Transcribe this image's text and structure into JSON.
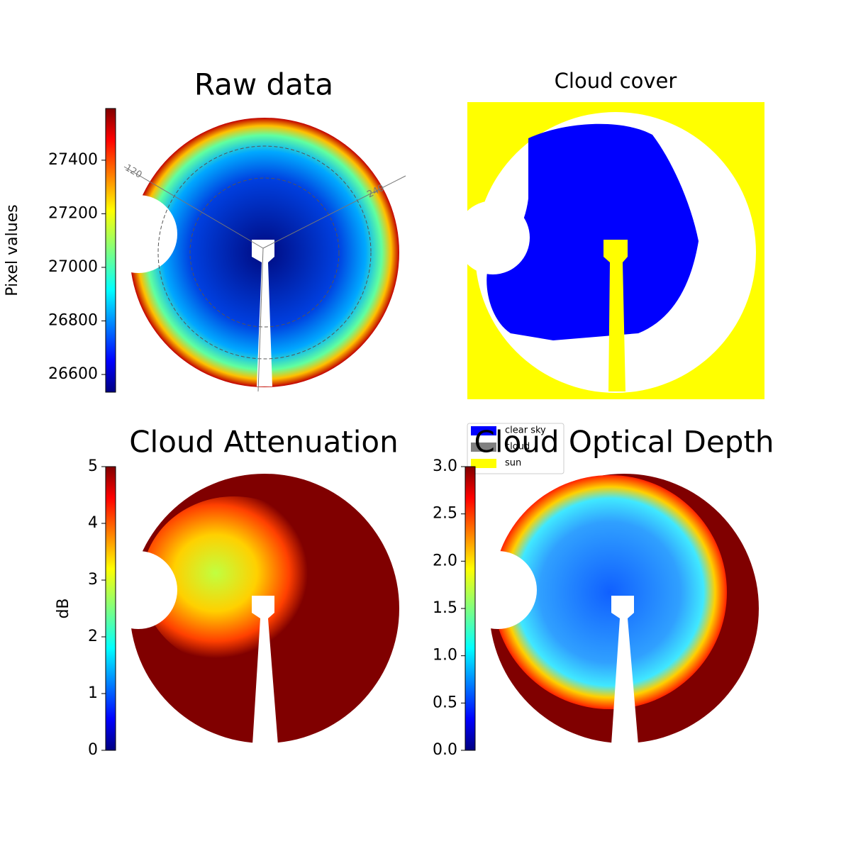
{
  "chart_data": [
    {
      "type": "image",
      "title": "Raw data",
      "colormap": "jet",
      "ylabel": "Pixel values",
      "ylim": [
        26534,
        27593
      ],
      "yticks": [
        26600,
        26800,
        27000,
        27200,
        27400
      ],
      "annotations": [
        "120",
        "240"
      ]
    },
    {
      "type": "image",
      "title": "Cloud cover",
      "legend": [
        {
          "name": "clear sky",
          "color": "#0000ff"
        },
        {
          "name": "cloud",
          "color": "#808080"
        },
        {
          "name": "sun",
          "color": "#ffff00"
        }
      ]
    },
    {
      "type": "image",
      "title": "Cloud Attenuation",
      "colormap": "jet",
      "ylabel": "dB",
      "ylim": [
        0,
        5
      ],
      "yticks": [
        0,
        1,
        2,
        3,
        4,
        5
      ]
    },
    {
      "type": "image",
      "title": "Cloud Optical Depth",
      "colormap": "jet",
      "ylim": [
        0,
        3
      ],
      "yticks": [
        {
          "value": 0,
          "label": "0.0"
        },
        {
          "value": 0.5,
          "label": "0.5"
        },
        {
          "value": 1,
          "label": "1.0"
        },
        {
          "value": 1.5,
          "label": "1.5"
        },
        {
          "value": 2,
          "label": "2.0"
        },
        {
          "value": 2.5,
          "label": "2.5"
        },
        {
          "value": 3,
          "label": "3.0"
        }
      ]
    }
  ]
}
